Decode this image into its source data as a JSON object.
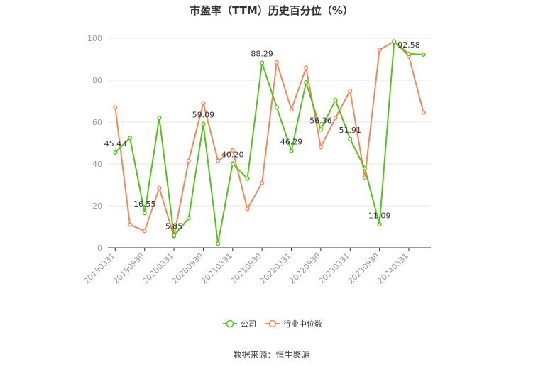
{
  "chart_data": {
    "type": "line",
    "title": "市盈率（TTM）历史百分位（%）",
    "xlabel": "",
    "ylabel": "",
    "ylim": [
      0,
      100
    ],
    "yticks": [
      0,
      20,
      40,
      60,
      80,
      100
    ],
    "x": [
      "20190331",
      "20190630",
      "20190930",
      "20191231",
      "20200331",
      "20200630",
      "20200930",
      "20201231",
      "20210331",
      "20210630",
      "20210930",
      "20211231",
      "20220331",
      "20220630",
      "20220930",
      "20221231",
      "20230331",
      "20230630",
      "20230930",
      "20231231",
      "20240331",
      "20240630"
    ],
    "xtick_labels": [
      "20190331",
      "20190930",
      "20200331",
      "20200930",
      "20210331",
      "20210930",
      "20220331",
      "20220930",
      "20230331",
      "20230930",
      "20240331"
    ],
    "grid": true,
    "legend_position": "bottom",
    "series": [
      {
        "name": "公司",
        "color": "#52c41a",
        "values": [
          45.43,
          52.5,
          16.55,
          62.0,
          5.85,
          14.0,
          59.09,
          2.0,
          40.2,
          33.0,
          88.29,
          67.0,
          46.29,
          79.0,
          56.36,
          70.5,
          51.91,
          38.0,
          11.09,
          98.5,
          92.58,
          92.2
        ],
        "labels": [
          "45.43",
          null,
          "16.55",
          null,
          "5.85",
          null,
          "59.09",
          null,
          "40.20",
          null,
          "88.29",
          null,
          "46.29",
          null,
          "56.36",
          null,
          "51.91",
          null,
          "11.09",
          null,
          "92.58",
          null
        ]
      },
      {
        "name": "行业中位数",
        "color": "#f5875a",
        "values": [
          67.0,
          11.0,
          8.0,
          28.5,
          5.5,
          41.5,
          69.0,
          41.5,
          46.5,
          18.5,
          31.0,
          88.5,
          66.0,
          86.0,
          48.0,
          62.0,
          75.0,
          33.5,
          94.5,
          98.5,
          91.5,
          64.5
        ],
        "labels": []
      }
    ]
  },
  "source": "数据来源：恒生聚源"
}
